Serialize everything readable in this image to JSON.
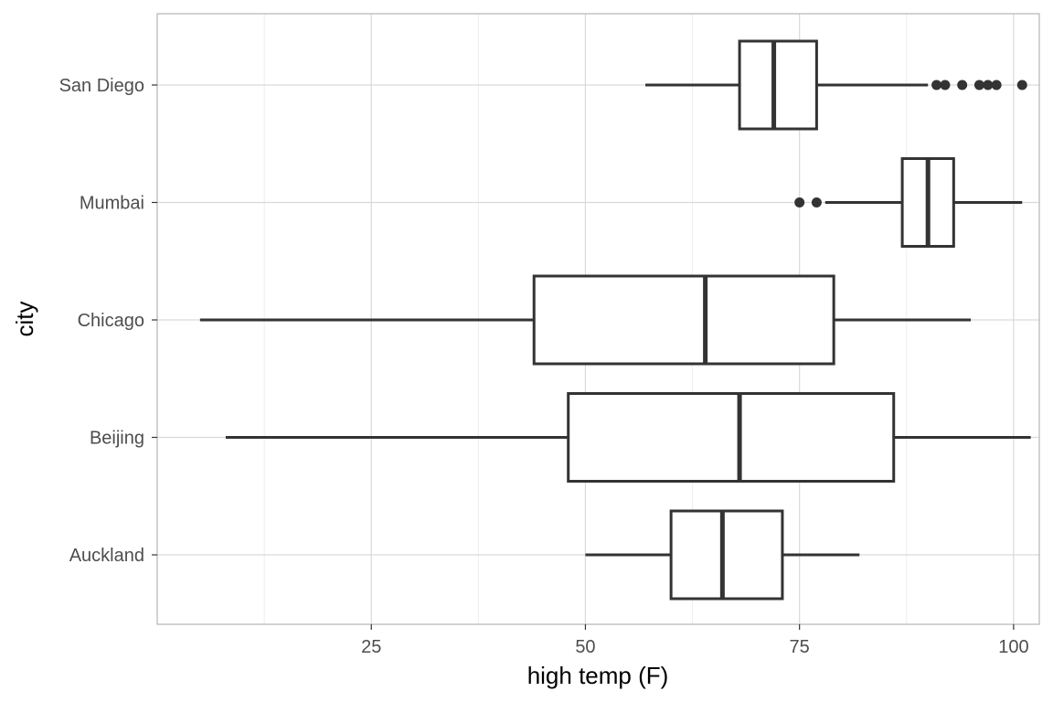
{
  "chart_data": {
    "type": "boxplot",
    "orientation": "horizontal",
    "title": "",
    "xlabel": "high temp (F)",
    "ylabel": "city",
    "xlim": [
      0,
      103
    ],
    "x_ticks": [
      25,
      50,
      75,
      100
    ],
    "x_tick_labels": [
      "25",
      "50",
      "75",
      "100"
    ],
    "grid": true,
    "legend": "none",
    "categories": [
      "Auckland",
      "Beijing",
      "Chicago",
      "Mumbai",
      "San Diego"
    ],
    "boxes": [
      {
        "category": "Auckland",
        "whisker_low": 50,
        "q1": 60,
        "median": 66,
        "q3": 73,
        "whisker_high": 82,
        "outliers": []
      },
      {
        "category": "Beijing",
        "whisker_low": 8,
        "q1": 48,
        "median": 68,
        "q3": 86,
        "whisker_high": 102,
        "outliers": []
      },
      {
        "category": "Chicago",
        "whisker_low": 5,
        "q1": 44,
        "median": 64,
        "q3": 79,
        "whisker_high": 95,
        "outliers": []
      },
      {
        "category": "Mumbai",
        "whisker_low": 78,
        "q1": 87,
        "median": 90,
        "q3": 93,
        "whisker_high": 101,
        "outliers": [
          75,
          77
        ]
      },
      {
        "category": "San Diego",
        "whisker_low": 57,
        "q1": 68,
        "median": 72,
        "q3": 77,
        "whisker_high": 90,
        "outliers": [
          91,
          92,
          94,
          96,
          97,
          98,
          101
        ]
      }
    ],
    "colors": {
      "box_stroke": "#333333",
      "box_fill": "#ffffff",
      "grid_major": "#d9d9d9",
      "grid_minor": "#ededed",
      "panel_border": "#b3b3b3",
      "outlier": "#333333"
    }
  }
}
